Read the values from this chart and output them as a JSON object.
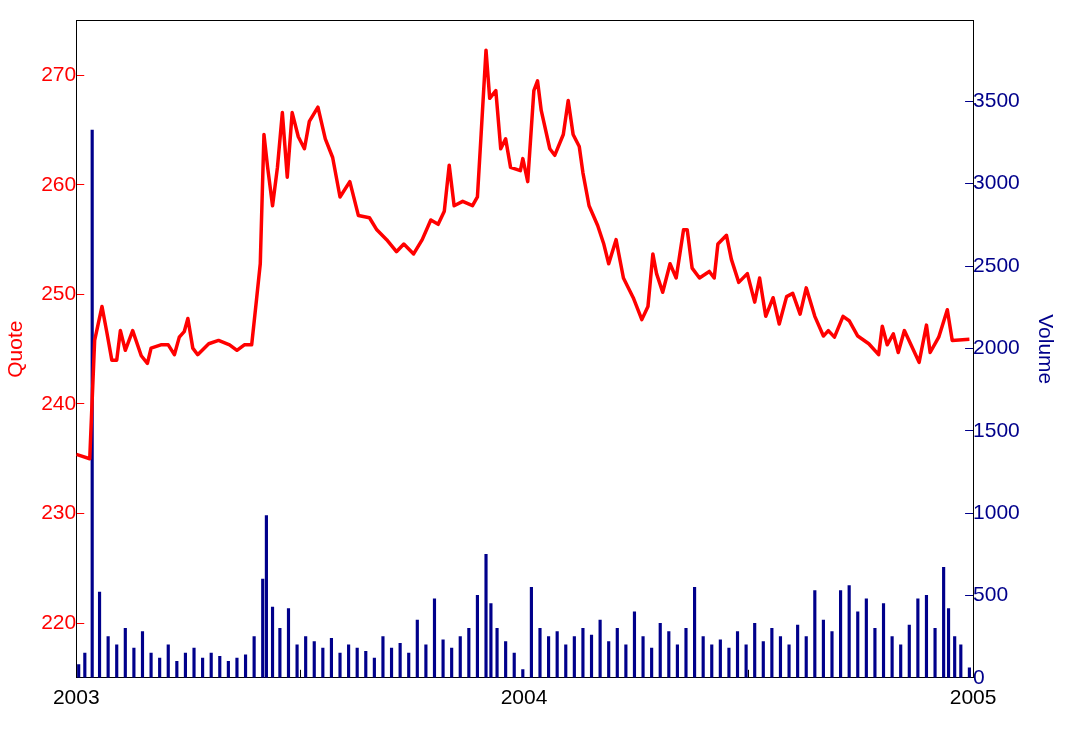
{
  "chart_data": {
    "type": "line",
    "ylabel": "Quote",
    "y2label": "Volume",
    "xlim": [
      "2003-01-01",
      "2005-01-01"
    ],
    "xticks": [
      {
        "value": "2003-01-01",
        "label": "2003"
      },
      {
        "value": "2004-01-01",
        "label": "2004"
      },
      {
        "value": "2005-01-01",
        "label": "2005"
      }
    ],
    "ylim": [
      215,
      275
    ],
    "yticks": [
      220,
      230,
      240,
      250,
      260,
      270
    ],
    "y2lim": [
      0,
      3990
    ],
    "y2ticks": [
      0,
      500,
      1000,
      1500,
      2000,
      2500,
      3000,
      3500
    ],
    "grid": false,
    "legend": false,
    "marker": "none",
    "line_style": "solid",
    "series": [
      {
        "color": "#ff0000",
        "x": [
          "2003-01-01",
          "2003-01-12",
          "2003-01-16",
          "2003-01-22",
          "2003-01-26",
          "2003-01-30",
          "2003-02-03",
          "2003-02-06",
          "2003-02-10",
          "2003-02-16",
          "2003-02-23",
          "2003-02-28",
          "2003-03-03",
          "2003-03-11",
          "2003-03-17",
          "2003-03-22",
          "2003-03-26",
          "2003-03-30",
          "2003-04-02",
          "2003-04-06",
          "2003-04-10",
          "2003-04-19",
          "2003-04-27",
          "2003-05-06",
          "2003-05-12",
          "2003-05-18",
          "2003-05-24",
          "2003-05-28",
          "2003-05-31",
          "2003-06-03",
          "2003-06-06",
          "2003-06-10",
          "2003-06-14",
          "2003-06-18",
          "2003-06-22",
          "2003-06-26",
          "2003-07-01",
          "2003-07-06",
          "2003-07-10",
          "2003-07-17",
          "2003-07-23",
          "2003-07-29",
          "2003-08-04",
          "2003-08-12",
          "2003-08-19",
          "2003-08-28",
          "2003-09-03",
          "2003-09-11",
          "2003-09-19",
          "2003-09-25",
          "2003-10-03",
          "2003-10-10",
          "2003-10-17",
          "2003-10-23",
          "2003-10-28",
          "2003-11-01",
          "2003-11-05",
          "2003-11-12",
          "2003-11-20",
          "2003-11-24",
          "2003-11-27",
          "2003-12-01",
          "2003-12-04",
          "2003-12-09",
          "2003-12-13",
          "2003-12-17",
          "2003-12-21",
          "2003-12-29",
          "2003-12-31",
          "2004-01-04",
          "2004-01-09",
          "2004-01-12",
          "2004-01-15",
          "2004-01-22",
          "2004-01-26",
          "2004-02-02",
          "2004-02-06",
          "2004-02-10",
          "2004-02-15",
          "2004-02-18",
          "2004-02-23",
          "2004-03-01",
          "2004-03-06",
          "2004-03-10",
          "2004-03-16",
          "2004-03-22",
          "2004-03-30",
          "2004-04-06",
          "2004-04-11",
          "2004-04-15",
          "2004-04-18",
          "2004-04-23",
          "2004-04-29",
          "2004-05-04",
          "2004-05-10",
          "2004-05-13",
          "2004-05-17",
          "2004-05-23",
          "2004-05-31",
          "2004-06-04",
          "2004-06-07",
          "2004-06-14",
          "2004-06-18",
          "2004-06-24",
          "2004-07-01",
          "2004-07-07",
          "2004-07-11",
          "2004-07-16",
          "2004-07-22",
          "2004-07-27",
          "2004-08-02",
          "2004-08-07",
          "2004-08-13",
          "2004-08-18",
          "2004-08-25",
          "2004-09-01",
          "2004-09-05",
          "2004-09-10",
          "2004-09-17",
          "2004-09-22",
          "2004-09-29",
          "2004-10-08",
          "2004-10-16",
          "2004-10-19",
          "2004-10-23",
          "2004-10-28",
          "2004-11-01",
          "2004-11-06",
          "2004-11-18",
          "2004-11-24",
          "2004-11-27",
          "2004-12-04",
          "2004-12-11",
          "2004-12-15",
          "2004-12-29"
        ],
        "values": [
          235.4,
          235.0,
          245.8,
          248.9,
          246.5,
          244.0,
          244.0,
          246.7,
          244.9,
          246.7,
          244.4,
          243.7,
          245.1,
          245.4,
          245.4,
          244.5,
          246.1,
          246.6,
          247.8,
          245.1,
          244.5,
          245.5,
          245.8,
          245.4,
          244.9,
          245.4,
          245.4,
          249.6,
          252.8,
          264.6,
          261.6,
          258.1,
          261.6,
          266.6,
          260.7,
          266.6,
          264.4,
          263.3,
          265.8,
          267.1,
          264.2,
          262.5,
          258.9,
          260.3,
          257.2,
          257.0,
          255.9,
          255.0,
          253.9,
          254.6,
          253.7,
          255.0,
          256.8,
          256.4,
          257.6,
          261.8,
          258.1,
          258.5,
          258.1,
          258.9,
          264.6,
          272.3,
          267.9,
          268.6,
          263.3,
          264.2,
          261.6,
          261.3,
          262.4,
          260.3,
          268.6,
          269.5,
          266.8,
          263.3,
          262.7,
          264.6,
          267.7,
          264.6,
          263.5,
          261.1,
          258.1,
          256.3,
          254.6,
          252.8,
          255.0,
          251.5,
          249.7,
          247.7,
          248.9,
          253.7,
          251.9,
          250.2,
          252.8,
          251.5,
          255.9,
          255.9,
          252.4,
          251.5,
          252.1,
          251.5,
          254.6,
          255.4,
          253.2,
          251.1,
          251.9,
          249.3,
          251.5,
          248.0,
          249.7,
          247.3,
          249.8,
          250.1,
          248.2,
          250.6,
          248.0,
          246.2,
          246.7,
          246.1,
          248.0,
          247.6,
          246.2,
          245.5,
          244.5,
          247.1,
          245.4,
          246.4,
          244.7,
          246.7,
          243.8,
          247.2,
          244.7,
          246.1,
          248.6,
          245.8,
          245.9
        ]
      },
      {
        "type": "bar",
        "axis": "y2",
        "color": "#00008b",
        "x": [
          "2003-01-03",
          "2003-01-08",
          "2003-01-14",
          "2003-01-20",
          "2003-01-27",
          "2003-02-03",
          "2003-02-10",
          "2003-02-17",
          "2003-02-24",
          "2003-03-03",
          "2003-03-10",
          "2003-03-17",
          "2003-03-24",
          "2003-03-31",
          "2003-04-07",
          "2003-04-14",
          "2003-04-21",
          "2003-04-28",
          "2003-05-05",
          "2003-05-12",
          "2003-05-19",
          "2003-05-26",
          "2003-06-02",
          "2003-06-05",
          "2003-06-10",
          "2003-06-16",
          "2003-06-23",
          "2003-06-30",
          "2003-07-07",
          "2003-07-14",
          "2003-07-21",
          "2003-07-28",
          "2003-08-04",
          "2003-08-11",
          "2003-08-18",
          "2003-08-25",
          "2003-09-01",
          "2003-09-08",
          "2003-09-15",
          "2003-09-22",
          "2003-09-29",
          "2003-10-06",
          "2003-10-13",
          "2003-10-20",
          "2003-10-27",
          "2003-11-03",
          "2003-11-10",
          "2003-11-17",
          "2003-11-24",
          "2003-12-01",
          "2003-12-05",
          "2003-12-10",
          "2003-12-17",
          "2003-12-24",
          "2003-12-31",
          "2004-01-07",
          "2004-01-14",
          "2004-01-21",
          "2004-01-28",
          "2004-02-04",
          "2004-02-11",
          "2004-02-18",
          "2004-02-25",
          "2004-03-03",
          "2004-03-10",
          "2004-03-17",
          "2004-03-24",
          "2004-03-31",
          "2004-04-07",
          "2004-04-14",
          "2004-04-21",
          "2004-04-28",
          "2004-05-05",
          "2004-05-12",
          "2004-05-19",
          "2004-05-26",
          "2004-06-02",
          "2004-06-09",
          "2004-06-16",
          "2004-06-23",
          "2004-06-30",
          "2004-07-07",
          "2004-07-14",
          "2004-07-21",
          "2004-07-28",
          "2004-08-04",
          "2004-08-11",
          "2004-08-18",
          "2004-08-25",
          "2004-09-01",
          "2004-09-08",
          "2004-09-15",
          "2004-09-22",
          "2004-09-29",
          "2004-10-06",
          "2004-10-13",
          "2004-10-20",
          "2004-10-27",
          "2004-11-03",
          "2004-11-10",
          "2004-11-17",
          "2004-11-24",
          "2004-12-01",
          "2004-12-08",
          "2004-12-12",
          "2004-12-17",
          "2004-12-22",
          "2004-12-29"
        ],
        "values": [
          80,
          150,
          3325,
          520,
          250,
          200,
          300,
          180,
          280,
          150,
          120,
          200,
          100,
          150,
          180,
          120,
          150,
          130,
          100,
          120,
          140,
          250,
          600,
          985,
          430,
          300,
          420,
          200,
          250,
          220,
          180,
          240,
          150,
          200,
          180,
          160,
          120,
          250,
          180,
          210,
          150,
          350,
          200,
          480,
          230,
          180,
          250,
          300,
          500,
          750,
          450,
          300,
          220,
          150,
          50,
          550,
          300,
          250,
          280,
          200,
          250,
          300,
          260,
          350,
          220,
          300,
          200,
          400,
          250,
          180,
          330,
          280,
          200,
          300,
          550,
          250,
          200,
          230,
          180,
          280,
          200,
          330,
          220,
          300,
          250,
          200,
          320,
          250,
          530,
          350,
          280,
          530,
          560,
          400,
          480,
          300,
          450,
          250,
          200,
          320,
          480,
          500,
          300,
          670,
          420,
          250,
          200,
          60
        ]
      }
    ]
  }
}
